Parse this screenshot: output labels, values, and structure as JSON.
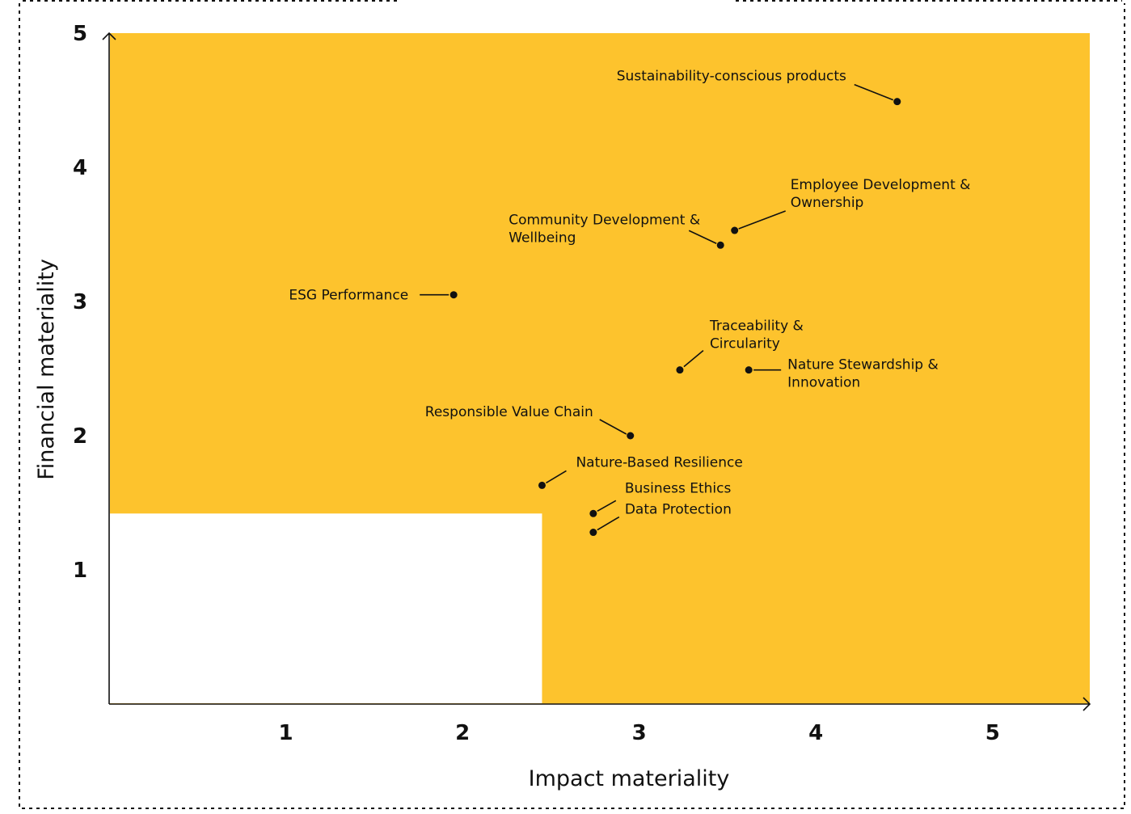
{
  "chart_data": {
    "type": "scatter",
    "title": "",
    "xlabel": "Impact materiality",
    "ylabel": "Financial materiality",
    "xlim": [
      0,
      5.55
    ],
    "ylim": [
      0,
      5
    ],
    "x_ticks": [
      1,
      2,
      3,
      4,
      5
    ],
    "y_ticks": [
      1,
      2,
      3,
      4,
      5
    ],
    "grid": false,
    "colors": {
      "material_area": "#FDC32D",
      "non_material_area": "#FFFFFF",
      "points": "#111111"
    },
    "non_material_region": {
      "x_max": 2.45,
      "y_max": 1.42
    },
    "points": [
      {
        "label": [
          "Sustainability-conscious products"
        ],
        "x": 4.46,
        "y": 4.49
      },
      {
        "label": [
          "Employee Development &",
          "Ownership"
        ],
        "x": 3.54,
        "y": 3.53
      },
      {
        "label": [
          "Community Development &",
          "Wellbeing"
        ],
        "x": 3.46,
        "y": 3.42
      },
      {
        "label": [
          "ESG Performance"
        ],
        "x": 1.95,
        "y": 3.05
      },
      {
        "label": [
          "Traceability &",
          "Circularity"
        ],
        "x": 3.23,
        "y": 2.49
      },
      {
        "label": [
          "Nature Stewardship &",
          "Innovation"
        ],
        "x": 3.62,
        "y": 2.49
      },
      {
        "label": [
          "Responsible Value Chain"
        ],
        "x": 2.95,
        "y": 2.0
      },
      {
        "label": [
          "Nature-Based Resilience"
        ],
        "x": 2.45,
        "y": 1.63
      },
      {
        "label": [
          "Business Ethics"
        ],
        "x": 2.74,
        "y": 1.42
      },
      {
        "label": [
          "Data Protection"
        ],
        "x": 2.74,
        "y": 1.28
      }
    ]
  }
}
